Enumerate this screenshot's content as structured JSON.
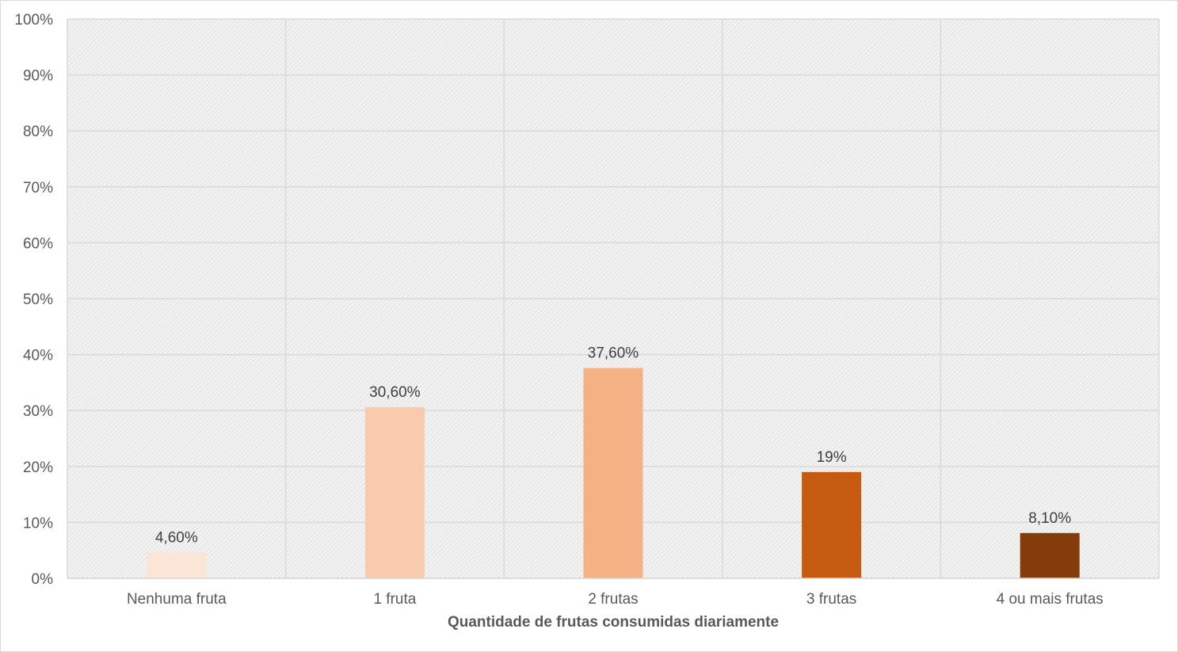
{
  "chart_data": {
    "type": "bar",
    "title": "",
    "xlabel": "Quantidade de frutas consumidas diariamente",
    "ylabel": "",
    "categories": [
      "Nenhuma fruta",
      "1 fruta",
      "2 frutas",
      "3 frutas",
      "4 ou mais frutas"
    ],
    "values": [
      4.6,
      30.6,
      37.6,
      19,
      8.1
    ],
    "data_labels": [
      "4,60%",
      "30,60%",
      "37,60%",
      "19%",
      "8,10%"
    ],
    "colors": [
      "#fbe5d6",
      "#f8cbad",
      "#f4b183",
      "#c55a11",
      "#843c0c"
    ],
    "ylim": [
      0,
      100
    ],
    "yticks": [
      0,
      10,
      20,
      30,
      40,
      50,
      60,
      70,
      80,
      90,
      100
    ],
    "ytick_labels": [
      "0%",
      "10%",
      "20%",
      "30%",
      "40%",
      "50%",
      "60%",
      "70%",
      "80%",
      "90%",
      "100%"
    ],
    "grid": true,
    "plot_background": "hatched light gray",
    "legend": "none"
  }
}
